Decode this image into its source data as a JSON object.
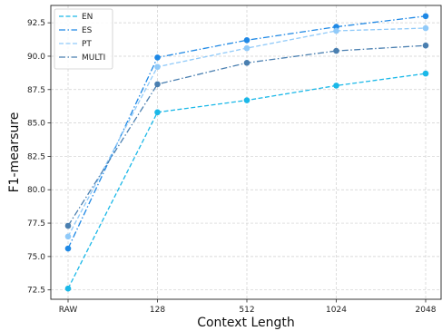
{
  "chart_data": {
    "type": "line",
    "title": "",
    "xlabel": "Context Length",
    "ylabel": "F1-mearsure",
    "categories": [
      "RAW",
      "128",
      "512",
      "1024",
      "2048"
    ],
    "ylim": [
      71.8,
      93.8
    ],
    "yticks": [
      "72.5",
      "75.0",
      "77.5",
      "80.0",
      "82.5",
      "85.0",
      "87.5",
      "90.0",
      "92.5"
    ],
    "grid": true,
    "legend_position": "top-left",
    "series": [
      {
        "name": "EN",
        "values": [
          72.6,
          85.8,
          86.7,
          87.8,
          88.7
        ],
        "color": "#1ab8e8",
        "dash": "dashed"
      },
      {
        "name": "ES",
        "values": [
          75.6,
          89.9,
          91.2,
          92.2,
          93.0
        ],
        "color": "#1e88e5",
        "dash": "dashdot"
      },
      {
        "name": "PT",
        "values": [
          76.5,
          89.2,
          90.6,
          91.9,
          92.1
        ],
        "color": "#90caf9",
        "dash": "dashed"
      },
      {
        "name": "MULTI",
        "values": [
          77.3,
          87.9,
          89.5,
          90.4,
          90.8
        ],
        "color": "#4a7fb0",
        "dash": "dashdot"
      }
    ]
  }
}
